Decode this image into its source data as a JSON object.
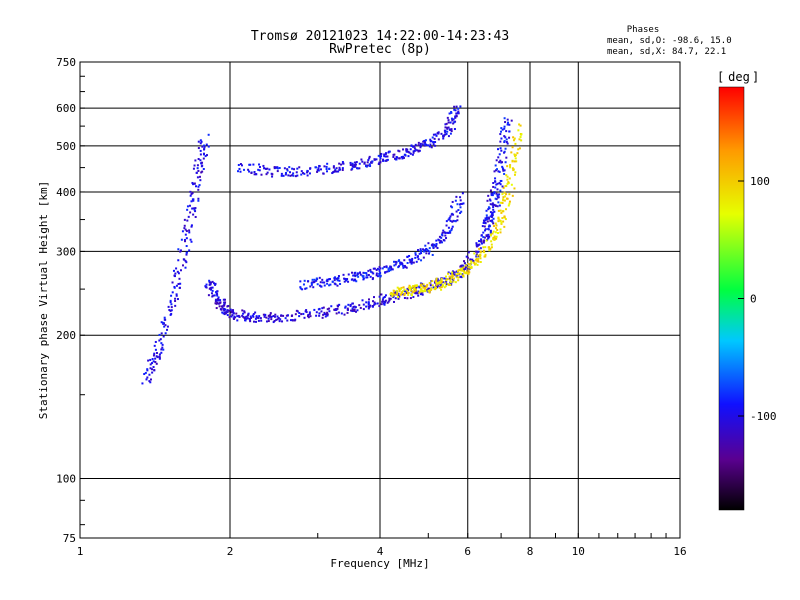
{
  "chart_data": {
    "type": "scatter",
    "title": "Tromsø 20121023 14:22:00-14:23:43",
    "subtitle": "RwPretec (8p)",
    "stats": {
      "heading": "Phases",
      "line_o": "mean, sd,O: -98.6, 15.0",
      "line_x": "mean, sd,X:  84.7, 22.1"
    },
    "xlabel": "Frequency [MHz]",
    "ylabel": "Stationary phase Virtual Height [km]",
    "x_scale": "log",
    "y_scale": "log",
    "xlim": [
      1,
      16
    ],
    "ylim": [
      75,
      750
    ],
    "xticks": [
      "1",
      "2",
      "4",
      "6",
      "8",
      "10",
      "16"
    ],
    "xtick_values": [
      1,
      2,
      4,
      6,
      8,
      10,
      16
    ],
    "yticks": [
      "75",
      "100",
      "200",
      "300",
      "400",
      "500",
      "600",
      "750"
    ],
    "ytick_values": [
      75,
      100,
      200,
      300,
      400,
      500,
      600,
      750
    ],
    "grid": true,
    "colorbar": {
      "label": "deg",
      "range": [
        -180,
        180
      ],
      "ticks": [
        "100",
        "0",
        "-100"
      ],
      "tick_values": [
        100,
        0,
        -100
      ],
      "colormap": "rainbow (black-purple-blue-cyan-green-yellow-red)"
    },
    "series": [
      {
        "description_none": "",
        "traces": [
          {
            "x": [
              1.35,
              1.45,
              1.55,
              1.65,
              1.72,
              1.78
            ],
            "y": [
              160,
              190,
              250,
              330,
              430,
              520
            ],
            "phase": -100
          },
          {
            "x": [
              1.8,
              1.9,
              2.0,
              2.2,
              2.5,
              3.0,
              3.5,
              4.0,
              4.5,
              5.0,
              5.5,
              6.0,
              6.5,
              6.8
            ],
            "y": [
              260,
              235,
              222,
              218,
              218,
              222,
              228,
              236,
              244,
              252,
              262,
              280,
              320,
              400
            ],
            "phase": -105
          },
          {
            "x": [
              2.1,
              2.5,
              3.0,
              3.5,
              4.0,
              4.5,
              5.0,
              5.5,
              5.7
            ],
            "y": [
              450,
              440,
              445,
              455,
              470,
              485,
              505,
              540,
              600
            ],
            "phase": -100
          },
          {
            "x": [
              2.8,
              3.2,
              3.6,
              4.0,
              4.5,
              5.0,
              5.5,
              5.8
            ],
            "y": [
              255,
              260,
              265,
              272,
              285,
              300,
              330,
              390
            ],
            "phase": -95
          },
          {
            "x": [
              4.2,
              4.6,
              5.0,
              5.5,
              6.0,
              6.5,
              7.0,
              7.3,
              7.6
            ],
            "y": [
              245,
              248,
              252,
              260,
              275,
              300,
              345,
              420,
              550
            ],
            "phase": 90
          },
          {
            "x": [
              6.5,
              6.8,
              7.0,
              7.2
            ],
            "y": [
              320,
              380,
              460,
              580
            ],
            "phase": -95
          }
        ]
      }
    ]
  }
}
